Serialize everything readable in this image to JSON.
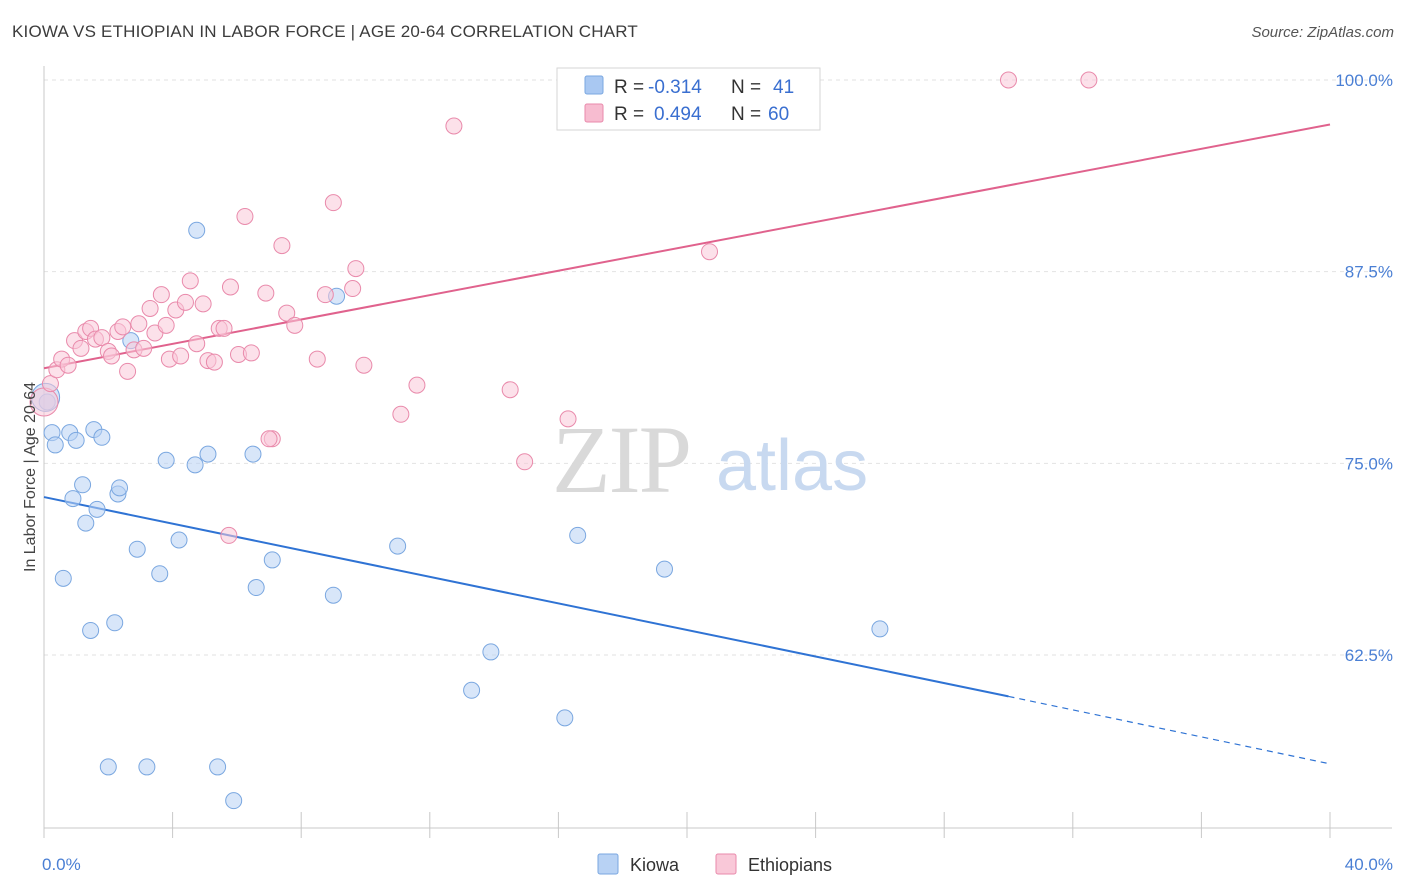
{
  "title": "KIOWA VS ETHIOPIAN IN LABOR FORCE | AGE 20-64 CORRELATION CHART",
  "source": "Source: ZipAtlas.com",
  "watermark": {
    "zip": "ZIP",
    "atlas": "atlas"
  },
  "legend": {
    "rows": [
      {
        "r_label": "R =",
        "r_value": "-0.314",
        "n_label": "N =",
        "n_value": "41",
        "color": "#a9c8f2",
        "border": "#7aa7e0"
      },
      {
        "r_label": "R =",
        "r_value": "0.494",
        "n_label": "N =",
        "n_value": "60",
        "color": "#f7bcd0",
        "border": "#e98aab"
      }
    ]
  },
  "bottom_legend": [
    {
      "label": "Kiowa",
      "color": "#b8d2f4",
      "border": "#7aa7e0"
    },
    {
      "label": "Ethiopians",
      "color": "#f9c8d8",
      "border": "#e98aab"
    }
  ],
  "chart_data": {
    "type": "scatter",
    "ylabel": "In Labor Force | Age 20-64",
    "xlim": [
      0,
      40
    ],
    "ylim": [
      52,
      101
    ],
    "x_tick_labels": [
      "0.0%",
      "40.0%"
    ],
    "y_ticks": [
      62.5,
      75.0,
      87.5,
      100.0
    ],
    "y_tick_labels": [
      "62.5%",
      "75.0%",
      "87.5%",
      "100.0%"
    ],
    "grid": true,
    "series": [
      {
        "name": "Kiowa",
        "color": "#7aa7e0",
        "fill": "#b8d2f4",
        "trend": {
          "x0": 0,
          "y0": 72.8,
          "x1": 30,
          "y1": 59.8,
          "dash_to_x": 40,
          "dash_to_y": 55.4,
          "color": "#2f73d4"
        },
        "points": [
          [
            0.1,
            79.0
          ],
          [
            0.25,
            77.0
          ],
          [
            0.35,
            76.2
          ],
          [
            0.6,
            67.5
          ],
          [
            0.8,
            77.0
          ],
          [
            0.9,
            72.7
          ],
          [
            1.0,
            76.5
          ],
          [
            1.2,
            73.6
          ],
          [
            1.3,
            71.1
          ],
          [
            1.45,
            64.1
          ],
          [
            1.55,
            77.2
          ],
          [
            1.65,
            72.0
          ],
          [
            1.8,
            76.7
          ],
          [
            2.0,
            55.2
          ],
          [
            2.2,
            64.6
          ],
          [
            2.3,
            73.0
          ],
          [
            2.35,
            73.4
          ],
          [
            2.7,
            83.0
          ],
          [
            2.9,
            69.4
          ],
          [
            3.2,
            55.2
          ],
          [
            3.6,
            67.8
          ],
          [
            3.8,
            75.2
          ],
          [
            4.2,
            70.0
          ],
          [
            4.7,
            74.9
          ],
          [
            4.75,
            90.2
          ],
          [
            5.1,
            75.6
          ],
          [
            5.4,
            55.2
          ],
          [
            5.9,
            53.0
          ],
          [
            6.6,
            66.9
          ],
          [
            6.5,
            75.6
          ],
          [
            7.1,
            68.7
          ],
          [
            9.0,
            66.4
          ],
          [
            9.1,
            85.9
          ],
          [
            11.0,
            69.6
          ],
          [
            13.3,
            60.2
          ],
          [
            13.9,
            62.7
          ],
          [
            16.2,
            58.4
          ],
          [
            16.6,
            70.3
          ],
          [
            19.3,
            68.1
          ],
          [
            26.0,
            64.2
          ],
          [
            0.05,
            79.3
          ]
        ]
      },
      {
        "name": "Ethiopians",
        "color": "#e98aab",
        "fill": "#f9c8d8",
        "trend": {
          "x0": 0,
          "y0": 81.2,
          "x1": 40,
          "y1": 97.1,
          "color": "#e0628d"
        },
        "points": [
          [
            0.0,
            79.0
          ],
          [
            0.2,
            80.2
          ],
          [
            0.4,
            81.1
          ],
          [
            0.55,
            81.8
          ],
          [
            0.75,
            81.4
          ],
          [
            0.95,
            83.0
          ],
          [
            1.15,
            82.5
          ],
          [
            1.3,
            83.6
          ],
          [
            1.45,
            83.8
          ],
          [
            1.6,
            83.1
          ],
          [
            1.8,
            83.2
          ],
          [
            2.0,
            82.3
          ],
          [
            2.1,
            82.0
          ],
          [
            2.3,
            83.6
          ],
          [
            2.45,
            83.9
          ],
          [
            2.6,
            81.0
          ],
          [
            2.8,
            82.4
          ],
          [
            2.95,
            84.1
          ],
          [
            3.1,
            82.5
          ],
          [
            3.3,
            85.1
          ],
          [
            3.45,
            83.5
          ],
          [
            3.65,
            86.0
          ],
          [
            3.8,
            84.0
          ],
          [
            3.9,
            81.8
          ],
          [
            4.1,
            85.0
          ],
          [
            4.25,
            82.0
          ],
          [
            4.4,
            85.5
          ],
          [
            4.55,
            86.9
          ],
          [
            4.75,
            82.8
          ],
          [
            4.95,
            85.4
          ],
          [
            5.1,
            81.7
          ],
          [
            5.3,
            81.6
          ],
          [
            5.45,
            83.8
          ],
          [
            5.6,
            83.8
          ],
          [
            5.75,
            70.3
          ],
          [
            5.8,
            86.5
          ],
          [
            6.05,
            82.1
          ],
          [
            6.25,
            91.1
          ],
          [
            6.45,
            82.2
          ],
          [
            6.9,
            86.1
          ],
          [
            7.1,
            76.6
          ],
          [
            7.0,
            76.6
          ],
          [
            7.4,
            89.2
          ],
          [
            7.55,
            84.8
          ],
          [
            7.8,
            84.0
          ],
          [
            8.5,
            81.8
          ],
          [
            8.75,
            86.0
          ],
          [
            9.0,
            92.0
          ],
          [
            9.6,
            86.4
          ],
          [
            9.7,
            87.7
          ],
          [
            9.95,
            81.4
          ],
          [
            11.1,
            78.2
          ],
          [
            11.6,
            80.1
          ],
          [
            12.75,
            97.0
          ],
          [
            14.5,
            79.8
          ],
          [
            14.95,
            75.1
          ],
          [
            16.3,
            77.9
          ],
          [
            20.7,
            88.8
          ],
          [
            30.0,
            100.0
          ],
          [
            32.5,
            100.0
          ]
        ]
      }
    ]
  }
}
